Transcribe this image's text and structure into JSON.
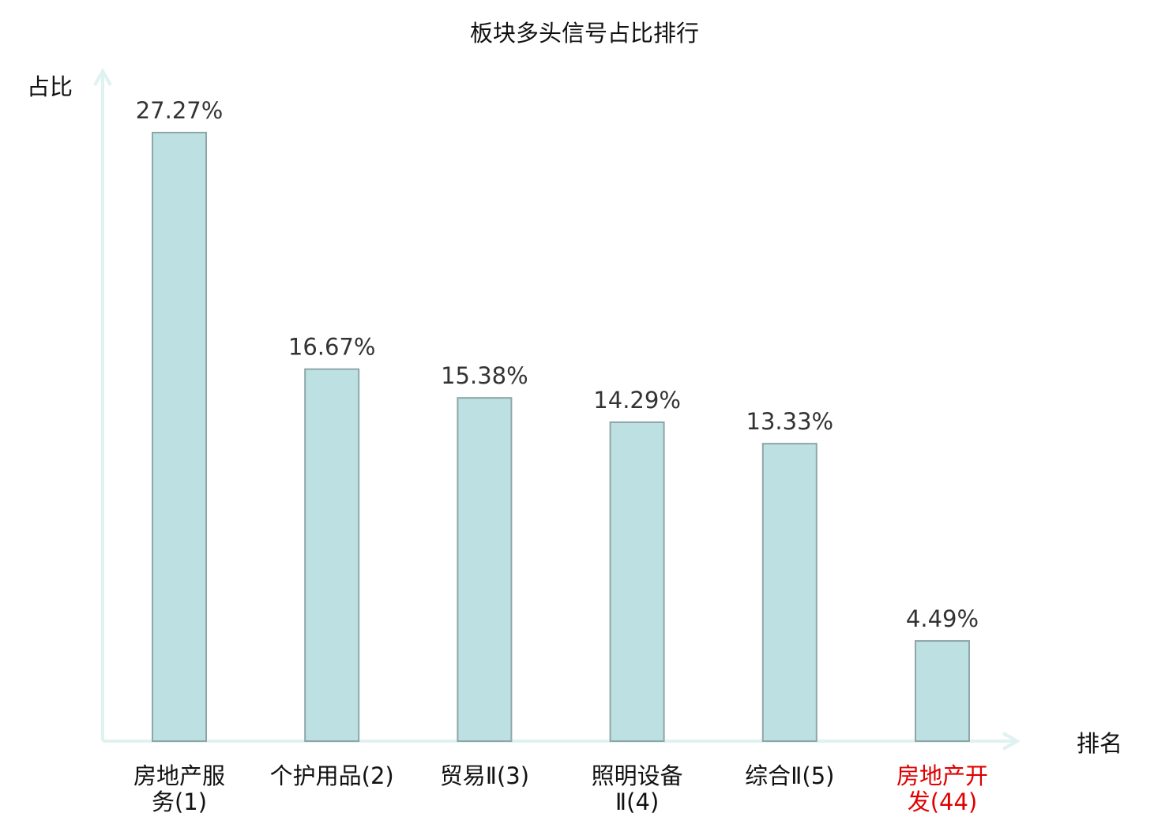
{
  "chart_data": {
    "type": "bar",
    "title": "板块多头信号占比排行",
    "ylabel": "占比",
    "xlabel": "排名",
    "categories": [
      {
        "lines": [
          "房地产服",
          "务(1)"
        ],
        "highlight": false
      },
      {
        "lines": [
          "个护用品(2)"
        ],
        "highlight": false
      },
      {
        "lines": [
          "贸易Ⅱ(3)"
        ],
        "highlight": false
      },
      {
        "lines": [
          "照明设备",
          "Ⅱ(4)"
        ],
        "highlight": false
      },
      {
        "lines": [
          "综合Ⅱ(5)"
        ],
        "highlight": false
      },
      {
        "lines": [
          "房地产开",
          "发(44)"
        ],
        "highlight": true
      }
    ],
    "values": [
      27.27,
      16.67,
      15.38,
      14.29,
      13.33,
      4.49
    ],
    "value_labels": [
      "27.27%",
      "16.67%",
      "15.38%",
      "14.29%",
      "13.33%",
      "4.49%"
    ],
    "ylim": [
      0,
      30
    ],
    "grid": false,
    "colors": {
      "bar_fill": "#bde0e3",
      "bar_stroke": "#8fa6a8",
      "axis": "#dff2ef",
      "text": "#111111",
      "value_text": "#333333",
      "highlight": "#e00000"
    }
  }
}
